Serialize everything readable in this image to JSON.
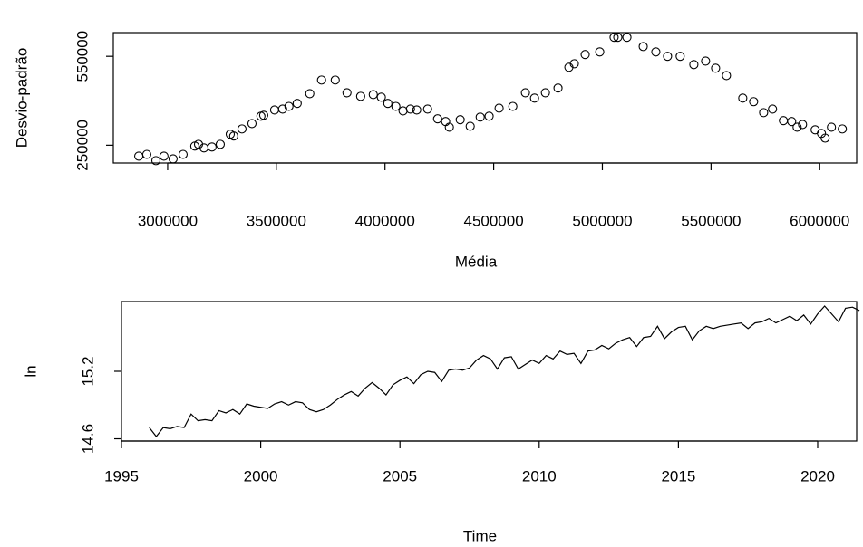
{
  "chart_data": [
    {
      "type": "scatter",
      "xlabel": "Média",
      "ylabel": "Desvio-padrão",
      "color": "#000000",
      "xlim": [
        2750000,
        6170000
      ],
      "ylim": [
        190000,
        630000
      ],
      "xticks": [
        3000000,
        3500000,
        4000000,
        4500000,
        5000000,
        5500000,
        6000000
      ],
      "yticks": [
        250000,
        550000
      ],
      "x": [
        2867000,
        2904000,
        2946000,
        2983000,
        3025000,
        3071000,
        3125000,
        3142000,
        3167000,
        3204000,
        3242000,
        3288000,
        3304000,
        3342000,
        3388000,
        3429000,
        3442000,
        3492000,
        3529000,
        3558000,
        3596000,
        3654000,
        3708000,
        3771000,
        3825000,
        3888000,
        3946000,
        3983000,
        4013000,
        4050000,
        4083000,
        4117000,
        4146000,
        4196000,
        4242000,
        4279000,
        4296000,
        4346000,
        4392000,
        4438000,
        4479000,
        4525000,
        4588000,
        4646000,
        4688000,
        4738000,
        4796000,
        4846000,
        4871000,
        4921000,
        4988000,
        5054000,
        5071000,
        5113000,
        5188000,
        5246000,
        5300000,
        5358000,
        5421000,
        5475000,
        5521000,
        5571000,
        5646000,
        5696000,
        5742000,
        5783000,
        5833000,
        5871000,
        5896000,
        5921000,
        5979000,
        6008000,
        6025000,
        6054000,
        6104000
      ],
      "values": [
        213000,
        219000,
        198000,
        213000,
        204000,
        219000,
        247000,
        253000,
        241000,
        244000,
        253000,
        287000,
        281000,
        305000,
        323000,
        348000,
        351000,
        369000,
        372000,
        381000,
        391000,
        424000,
        470000,
        470000,
        427000,
        415000,
        421000,
        412000,
        391000,
        381000,
        366000,
        372000,
        369000,
        372000,
        339000,
        330000,
        311000,
        336000,
        314000,
        345000,
        348000,
        375000,
        381000,
        427000,
        409000,
        427000,
        443000,
        513000,
        525000,
        556000,
        565000,
        614000,
        614000,
        614000,
        583000,
        565000,
        550000,
        550000,
        522000,
        534000,
        510000,
        485000,
        409000,
        397000,
        360000,
        372000,
        333000,
        330000,
        311000,
        320000,
        302000,
        290000,
        274000,
        311000,
        305000
      ]
    },
    {
      "type": "line",
      "xlabel": "Time",
      "ylabel": "ln",
      "color": "#000000",
      "xlim": [
        1995,
        2021.4
      ],
      "ylim": [
        14.58,
        15.82
      ],
      "xticks": [
        1995,
        2000,
        2005,
        2010,
        2015,
        2020
      ],
      "yticks": [
        14.6,
        15.2
      ],
      "x": [
        1996,
        1996.25,
        1996.5,
        1996.75,
        1997,
        1997.25,
        1997.5,
        1997.75,
        1998,
        1998.25,
        1998.5,
        1998.75,
        1999,
        1999.25,
        1999.5,
        1999.75,
        2000,
        2000.25,
        2000.5,
        2000.75,
        2001,
        2001.25,
        2001.5,
        2001.75,
        2002,
        2002.25,
        2002.5,
        2002.75,
        2003,
        2003.25,
        2003.5,
        2003.75,
        2004,
        2004.25,
        2004.5,
        2004.75,
        2005,
        2005.25,
        2005.5,
        2005.75,
        2006,
        2006.25,
        2006.5,
        2006.75,
        2007,
        2007.25,
        2007.5,
        2007.75,
        2008,
        2008.25,
        2008.5,
        2008.75,
        2009,
        2009.25,
        2009.5,
        2009.75,
        2010,
        2010.25,
        2010.5,
        2010.75,
        2011,
        2011.25,
        2011.5,
        2011.75,
        2012,
        2012.25,
        2012.5,
        2012.75,
        2013,
        2013.25,
        2013.5,
        2013.75,
        2014,
        2014.25,
        2014.5,
        2014.75,
        2015,
        2015.25,
        2015.5,
        2015.75,
        2016,
        2016.25,
        2016.5,
        2016.75,
        2017,
        2017.25,
        2017.5,
        2017.75,
        2018,
        2018.25,
        2018.5,
        2018.75,
        2019,
        2019.25,
        2019.5,
        2019.75,
        2020,
        2020.25,
        2020.5,
        2020.75,
        2021,
        2021.25,
        2021.5
      ],
      "values": [
        14.7,
        14.62,
        14.7,
        14.69,
        14.71,
        14.7,
        14.82,
        14.76,
        14.77,
        14.76,
        14.85,
        14.83,
        14.86,
        14.82,
        14.91,
        14.89,
        14.88,
        14.87,
        14.91,
        14.93,
        14.9,
        14.93,
        14.92,
        14.86,
        14.84,
        14.86,
        14.9,
        14.95,
        14.99,
        15.02,
        14.98,
        15.05,
        15.1,
        15.05,
        14.99,
        15.08,
        15.12,
        15.15,
        15.09,
        15.17,
        15.2,
        15.19,
        15.11,
        15.21,
        15.22,
        15.21,
        15.23,
        15.3,
        15.34,
        15.31,
        15.22,
        15.32,
        15.33,
        15.22,
        15.26,
        15.3,
        15.27,
        15.34,
        15.31,
        15.38,
        15.35,
        15.36,
        15.27,
        15.38,
        15.39,
        15.43,
        15.4,
        15.45,
        15.48,
        15.5,
        15.42,
        15.5,
        15.51,
        15.6,
        15.49,
        15.55,
        15.59,
        15.6,
        15.48,
        15.56,
        15.6,
        15.58,
        15.6,
        15.61,
        15.62,
        15.63,
        15.58,
        15.63,
        15.64,
        15.67,
        15.63,
        15.66,
        15.69,
        15.65,
        15.7,
        15.62,
        15.71,
        15.78,
        15.71,
        15.64,
        15.76,
        15.77,
        15.74
      ]
    }
  ]
}
